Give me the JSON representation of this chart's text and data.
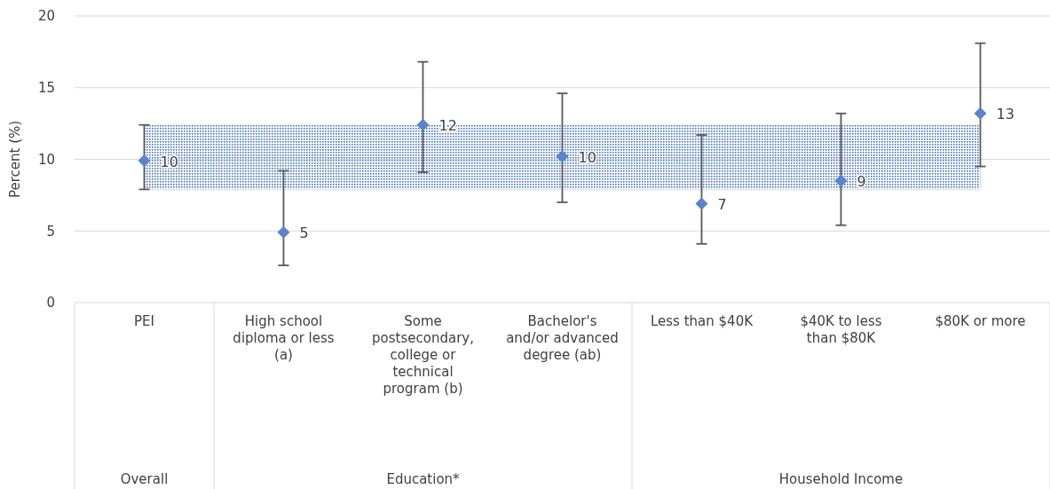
{
  "chart_data": {
    "type": "scatter",
    "ylabel": "Percent (%)",
    "categories": [
      "PEI",
      "High school diploma or less (a)",
      "Some postsecondary, college or technical program (b)",
      "Bachelor's and/or advanced degree (ab)",
      "Less than $40K",
      "$40K to less than $80K",
      "$80K or more"
    ],
    "values": [
      9.9,
      4.9,
      12.4,
      10.2,
      6.9,
      8.5,
      13.2
    ],
    "value_labels": [
      "10",
      "5",
      "12",
      "10",
      "7",
      "9",
      "13"
    ],
    "errors": [
      [
        7.9,
        12.4
      ],
      [
        2.6,
        9.2
      ],
      [
        9.1,
        16.8
      ],
      [
        7.0,
        14.6
      ],
      [
        4.1,
        11.7
      ],
      [
        5.4,
        13.2
      ],
      [
        9.5,
        18.1
      ]
    ],
    "color": "#5b84c9",
    "marker": "diamond",
    "ylim": [
      0,
      20
    ],
    "yticks": [
      0,
      5,
      10,
      15,
      20
    ],
    "grid": "y",
    "annotations": [
      "Overall",
      "Education*",
      "Household Income"
    ],
    "bands": [
      {
        "axis": "y",
        "from": 7.9,
        "to": 12.4,
        "color": "#4472c4"
      }
    ]
  }
}
